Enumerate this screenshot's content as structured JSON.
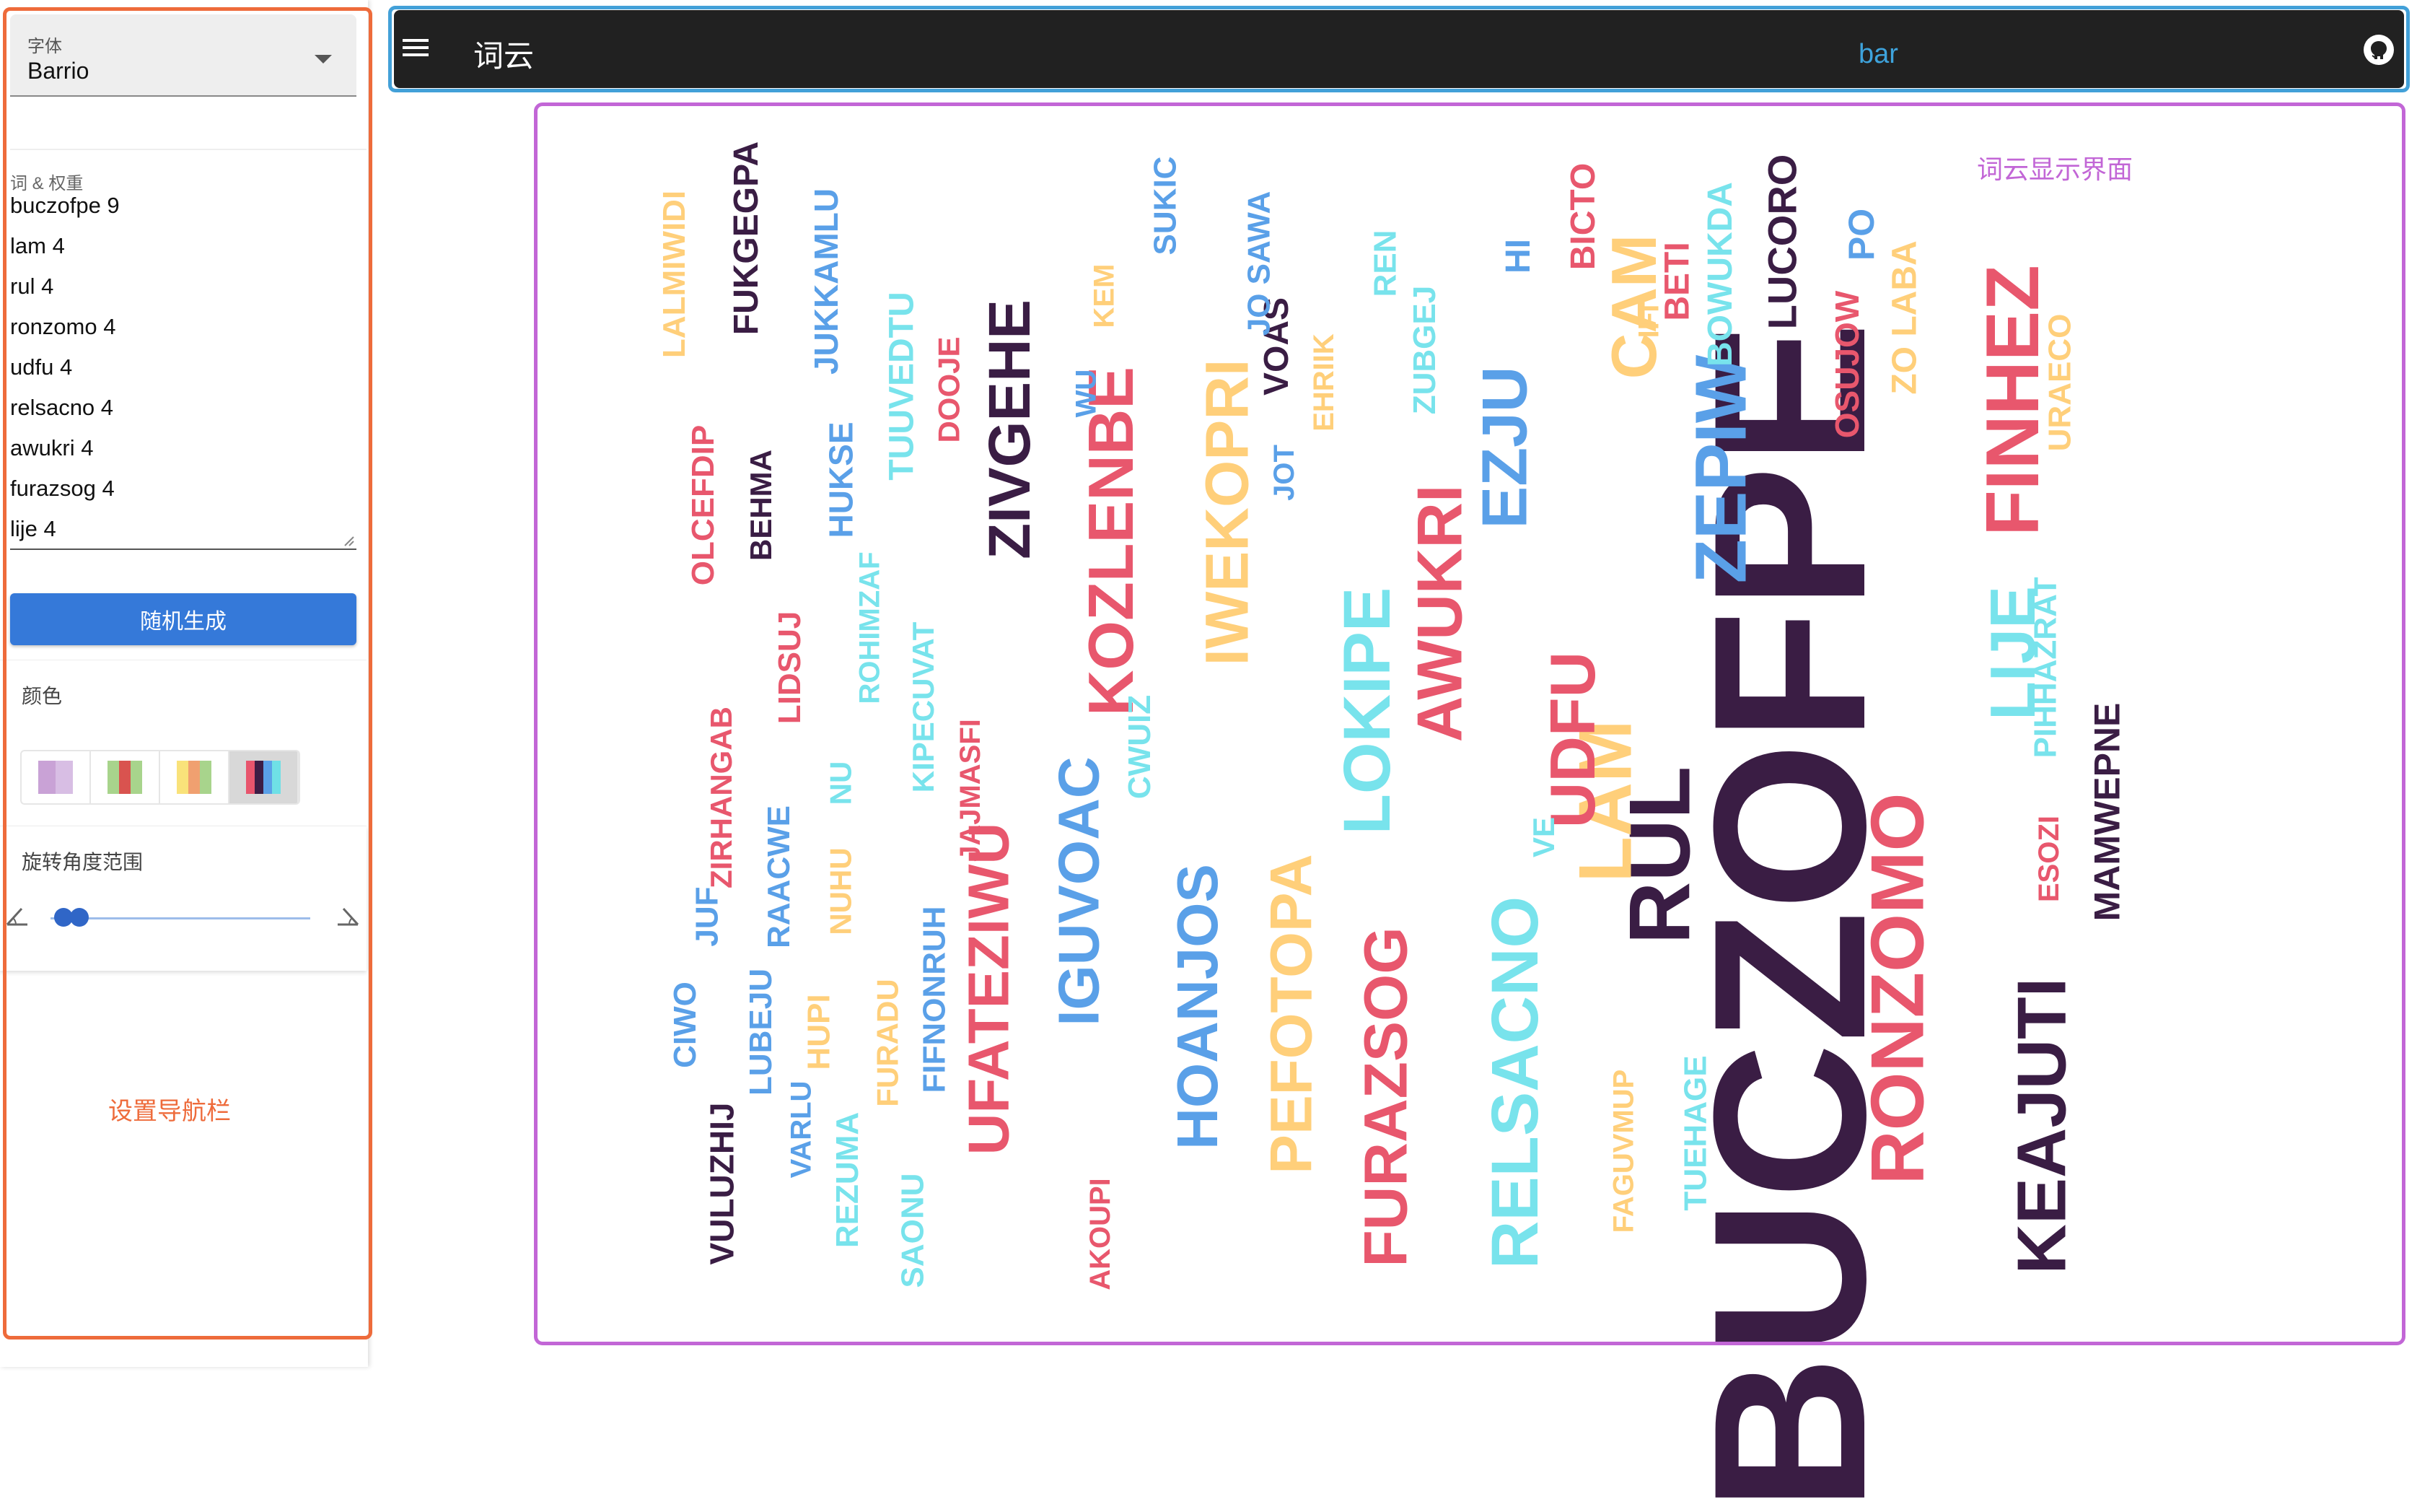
{
  "sidebar": {
    "font_label": "字体",
    "font_value": "Barrio",
    "words_label": "词 & 权重",
    "words": [
      "buczofpe 9",
      "lam 4",
      "rul 4",
      "ronzomo 4",
      "udfu 4",
      "relsacno 4",
      "awukri 4",
      "furazsog 4",
      "lije 4"
    ],
    "generate_button": "随机生成",
    "color_label": "颜色",
    "palettes": [
      {
        "colors": [
          "#c9a2d6",
          "#d8bee4"
        ],
        "active": false
      },
      {
        "colors": [
          "#a8d48c",
          "#d9534f",
          "#a8d48c"
        ],
        "active": false
      },
      {
        "colors": [
          "#f9e27a",
          "#f0a070",
          "#a8d48c"
        ],
        "active": false
      },
      {
        "colors": [
          "#e8556d",
          "#3d1d45",
          "#5aa0e8",
          "#6fe0e6"
        ],
        "active": true
      }
    ],
    "rotation_label": "旋转角度范围",
    "rotation_range": [
      0.05,
      0.11
    ]
  },
  "annotations": {
    "sidebar": "设置导航栏",
    "cloud": "词云显示界面",
    "colors": {
      "sidebar": "#ee6b3b",
      "topbar": "#42a0d8",
      "cloud": "#c266d6"
    }
  },
  "topbar": {
    "title": "词云",
    "center_label": "bar"
  },
  "cloud": {
    "words": [
      {
        "t": "BUCZOFPE",
        "c": "#3a1d44"
      },
      {
        "t": "RUL",
        "c": "#3a1d44"
      },
      {
        "t": "LAM",
        "c": "#ffcf7a"
      },
      {
        "t": "RONZOMO",
        "c": "#e8576d"
      },
      {
        "t": "KEAJUTI",
        "c": "#3a1d44"
      },
      {
        "t": "FINHEZ",
        "c": "#e8576d"
      },
      {
        "t": "LIJE",
        "c": "#78e3ec"
      },
      {
        "t": "ZEPIW",
        "c": "#5aa0e8"
      },
      {
        "t": "CAM",
        "c": "#ffcf7a"
      },
      {
        "t": "UDFU",
        "c": "#e8576d"
      },
      {
        "t": "EZJU",
        "c": "#5aa0e8"
      },
      {
        "t": "AWUKRI",
        "c": "#e8576d"
      },
      {
        "t": "RELSACNO",
        "c": "#78e3ec"
      },
      {
        "t": "FURAZSOG",
        "c": "#e8576d"
      },
      {
        "t": "LOKIPE",
        "c": "#78e3ec"
      },
      {
        "t": "PEFOTOPA",
        "c": "#ffcf7a"
      },
      {
        "t": "IWEKOPRI",
        "c": "#ffcf7a"
      },
      {
        "t": "HOANJOS",
        "c": "#5aa0e8"
      },
      {
        "t": "KOZLENBE",
        "c": "#e8576d"
      },
      {
        "t": "IGUVOAC",
        "c": "#5aa0e8"
      },
      {
        "t": "ZIVGEHE",
        "c": "#3a1d44"
      },
      {
        "t": "UFATEZIWU",
        "c": "#e8576d"
      },
      {
        "t": "LUCORO",
        "c": "#3a1d44"
      },
      {
        "t": "MAMWEPNE",
        "c": "#3a1d44"
      },
      {
        "t": "PIHHAZRAT",
        "c": "#78e3ec"
      },
      {
        "t": "ESOZI",
        "c": "#e8576d"
      },
      {
        "t": "URAECO",
        "c": "#ffcf7a"
      },
      {
        "t": "ZO LABA",
        "c": "#ffcf7a"
      },
      {
        "t": "OSUJOW",
        "c": "#e8576d"
      },
      {
        "t": "PO",
        "c": "#5aa0e8"
      },
      {
        "t": "BOWUKDA",
        "c": "#78e3ec"
      },
      {
        "t": "IFI",
        "c": "#ffcf7a"
      },
      {
        "t": "BETI",
        "c": "#e8576d"
      },
      {
        "t": "BICTO",
        "c": "#e8576d"
      },
      {
        "t": "HI",
        "c": "#5aa0e8"
      },
      {
        "t": "ZUBGEJ",
        "c": "#78e3ec"
      },
      {
        "t": "REN",
        "c": "#78e3ec"
      },
      {
        "t": "EHRIIK",
        "c": "#ffcf7a"
      },
      {
        "t": "JOT",
        "c": "#5aa0e8"
      },
      {
        "t": "VOAS",
        "c": "#3a1d44"
      },
      {
        "t": "JO SAWA",
        "c": "#5aa0e8"
      },
      {
        "t": "SUKIC",
        "c": "#5aa0e8"
      },
      {
        "t": "WU",
        "c": "#5aa0e8"
      },
      {
        "t": "KEM",
        "c": "#ffcf7a"
      },
      {
        "t": "VE",
        "c": "#78e3ec"
      },
      {
        "t": "TUEHAGE",
        "c": "#78e3ec"
      },
      {
        "t": "FAGUVMUP",
        "c": "#ffcf7a"
      },
      {
        "t": "AKOUPI",
        "c": "#e8576d"
      },
      {
        "t": "FIFNONRUH",
        "c": "#5aa0e8"
      },
      {
        "t": "SAONU",
        "c": "#78e3ec"
      },
      {
        "t": "FURADU",
        "c": "#ffcf7a"
      },
      {
        "t": "REZUMA",
        "c": "#78e3ec"
      },
      {
        "t": "VULUZHIJ",
        "c": "#3a1d44"
      },
      {
        "t": "VARLU",
        "c": "#5aa0e8"
      },
      {
        "t": "LUBEJU",
        "c": "#5aa0e8"
      },
      {
        "t": "CIWO",
        "c": "#5aa0e8"
      },
      {
        "t": "JUF",
        "c": "#5aa0e8"
      },
      {
        "t": "HUPI",
        "c": "#ffcf7a"
      },
      {
        "t": "NUHU",
        "c": "#ffcf7a"
      },
      {
        "t": "RAACWE",
        "c": "#5aa0e8"
      },
      {
        "t": "ZIRHANGAB",
        "c": "#e8576d"
      },
      {
        "t": "LIDSUJ",
        "c": "#e8576d"
      },
      {
        "t": "NU",
        "c": "#78e3ec"
      },
      {
        "t": "ROHIMZAF",
        "c": "#78e3ec"
      },
      {
        "t": "KIPECUVAT",
        "c": "#78e3ec"
      },
      {
        "t": "JAJMASFI",
        "c": "#e8576d"
      },
      {
        "t": "CWUIZ",
        "c": "#78e3ec"
      },
      {
        "t": "HUKSE",
        "c": "#5aa0e8"
      },
      {
        "t": "TUUVEDTU",
        "c": "#78e3ec"
      },
      {
        "t": "JUKKAMLU",
        "c": "#5aa0e8"
      },
      {
        "t": "DOOJE",
        "c": "#e8576d"
      },
      {
        "t": "BEHMA",
        "c": "#3a1d44"
      },
      {
        "t": "OLCEFDIP",
        "c": "#e8576d"
      },
      {
        "t": "LALMIWIDI",
        "c": "#ffcf7a"
      },
      {
        "t": "FUKGEGPA",
        "c": "#3a1d44"
      }
    ]
  }
}
